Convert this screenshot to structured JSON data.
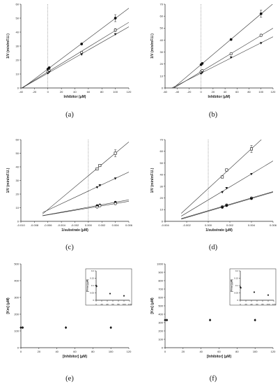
{
  "chart_data": [
    {
      "id": "a",
      "panel_label": "(a)",
      "type": "scatter",
      "xlabel": "Inhibitor (μM)",
      "ylabel": "1/V (min/mF.U.)",
      "xlim": [
        -40,
        120
      ],
      "ylim": [
        0,
        60
      ],
      "xticks": [
        -40,
        -20,
        0,
        20,
        40,
        60,
        80,
        100,
        120
      ],
      "yticks": [
        0,
        10,
        20,
        30,
        40,
        50,
        60
      ],
      "vline": 0,
      "fit_lines": true,
      "series": [
        {
          "marker": "filled-circle",
          "x": [
            0,
            2,
            50,
            100
          ],
          "y": [
            13.5,
            14.5,
            31.5,
            50
          ],
          "err": [
            0,
            0,
            0,
            2.5
          ],
          "line_from_x": -40,
          "line_to_x": 120
        },
        {
          "marker": "open-circle",
          "x": [
            0,
            2,
            50,
            100
          ],
          "y": [
            11.5,
            12.5,
            25.5,
            41.5
          ],
          "err": [
            0,
            0,
            0,
            1
          ],
          "line_from_x": -40,
          "line_to_x": 120
        },
        {
          "marker": "filled-triangle-down",
          "x": [
            0,
            2,
            50,
            100
          ],
          "y": [
            10.5,
            11.5,
            24,
            38.5
          ],
          "err": [
            0,
            0,
            0,
            0
          ],
          "line_from_x": -40,
          "line_to_x": 120
        }
      ]
    },
    {
      "id": "b",
      "panel_label": "(b)",
      "type": "scatter",
      "xlabel": "Inhibitor (μM)",
      "ylabel": "1/V (min/mF.U.)",
      "xlim": [
        -60,
        120
      ],
      "ylim": [
        0,
        70
      ],
      "xticks": [
        -60,
        -40,
        -20,
        0,
        20,
        40,
        60,
        80,
        100,
        120
      ],
      "yticks": [
        0,
        10,
        20,
        30,
        40,
        50,
        60,
        70
      ],
      "vline": 0,
      "fit_lines": true,
      "series": [
        {
          "marker": "filled-circle",
          "x": [
            0,
            2,
            50,
            100
          ],
          "y": [
            19.5,
            20.5,
            40.5,
            62
          ],
          "err": [
            0,
            0,
            0,
            3
          ],
          "line_from_x": -50,
          "line_to_x": 120
        },
        {
          "marker": "open-circle",
          "x": [
            0,
            2,
            50,
            100
          ],
          "y": [
            13.5,
            14.5,
            28.5,
            44
          ],
          "err": [
            0,
            0,
            0,
            1
          ],
          "line_from_x": -50,
          "line_to_x": 120
        },
        {
          "marker": "filled-triangle-down",
          "x": [
            0,
            2,
            50,
            100
          ],
          "y": [
            12,
            13,
            25.5,
            37.5
          ],
          "err": [
            0,
            0,
            0,
            0
          ],
          "line_from_x": -50,
          "line_to_x": 120
        }
      ]
    },
    {
      "id": "c",
      "panel_label": "(c)",
      "type": "scatter",
      "xlabel": "1/substrate (μM)",
      "ylabel": "1/V (min/mF.U.)",
      "xlim": [
        -0.01,
        0.006
      ],
      "ylim": [
        0,
        60
      ],
      "xticks": [
        -0.01,
        -0.008,
        -0.006,
        -0.004,
        -0.002,
        0.0,
        0.002,
        0.004,
        0.006
      ],
      "ytick_labels_x": [
        "-0.010",
        "-0.008",
        "-0.006",
        "-0.004",
        "-0.002",
        "0.000",
        "0.002",
        "0.004",
        "0.006"
      ],
      "yticks": [
        0,
        10,
        20,
        30,
        40,
        50,
        60
      ],
      "vline": 0,
      "fit_lines": true,
      "series": [
        {
          "marker": "open-square",
          "x": [
            0.0013,
            0.0017,
            0.004
          ],
          "y": [
            38.5,
            41,
            50
          ],
          "err": [
            0,
            0,
            2.5
          ],
          "line_from_x": -0.0068,
          "line_to_x": 0.006
        },
        {
          "marker": "filled-triangle-down",
          "x": [
            0.0013,
            0.0017,
            0.004
          ],
          "y": [
            25,
            26.5,
            31.5
          ],
          "err": [
            0,
            0,
            0
          ],
          "line_from_x": -0.0068,
          "line_to_x": 0.006
        },
        {
          "marker": "filled-circle",
          "x": [
            0.0013,
            0.0017,
            0.004
          ],
          "y": [
            11.5,
            12,
            14
          ],
          "err": [
            0,
            0,
            0
          ],
          "line_from_x": -0.0068,
          "line_to_x": 0.006
        },
        {
          "marker": "open-circle",
          "x": [
            0.0013,
            0.0017,
            0.004
          ],
          "y": [
            10.5,
            11.5,
            13
          ],
          "err": [
            0,
            0,
            0
          ],
          "line_from_x": -0.0068,
          "line_to_x": 0.006
        }
      ]
    },
    {
      "id": "d",
      "panel_label": "(d)",
      "type": "scatter",
      "xlabel": "1/substrate (μM)",
      "ylabel": "1/V (min/mF.U.)",
      "xlim": [
        -0.004,
        0.006
      ],
      "ylim": [
        0,
        70
      ],
      "xticks": [
        -0.004,
        -0.002,
        0.0,
        0.002,
        0.004,
        0.006
      ],
      "ytick_labels_x": [
        "-0.004",
        "-0.002",
        "0.000",
        "0.002",
        "0.004",
        "0.006"
      ],
      "yticks": [
        0,
        10,
        20,
        30,
        40,
        50,
        60,
        70
      ],
      "vline": 0,
      "fit_lines": true,
      "series": [
        {
          "marker": "open-square",
          "x": [
            0.0013,
            0.0017,
            0.004
          ],
          "y": [
            38,
            44,
            62
          ],
          "err": [
            0,
            0,
            3
          ],
          "line_from_x": -0.0025,
          "line_to_x": 0.006
        },
        {
          "marker": "filled-triangle-down",
          "x": [
            0.0013,
            0.0017,
            0.004
          ],
          "y": [
            25,
            28.5,
            40.5
          ],
          "err": [
            0,
            0,
            0
          ],
          "line_from_x": -0.0025,
          "line_to_x": 0.006
        },
        {
          "marker": "open-circle",
          "x": [
            0.0013,
            0.0017,
            0.004
          ],
          "y": [
            12.5,
            14,
            20
          ],
          "err": [
            0,
            0,
            0
          ],
          "line_from_x": -0.0025,
          "line_to_x": 0.006
        },
        {
          "marker": "filled-circle",
          "x": [
            0.0013,
            0.0017,
            0.004
          ],
          "y": [
            12,
            13.5,
            19.5
          ],
          "err": [
            0,
            0,
            0
          ],
          "line_from_x": -0.0025,
          "line_to_x": 0.006
        }
      ]
    },
    {
      "id": "e",
      "panel_label": "(e)",
      "type": "scatter",
      "xlabel": "[Inhibitor] (μM)",
      "ylabel": "[Km] (μM)",
      "xlim": [
        0,
        120
      ],
      "ylim": [
        0,
        500
      ],
      "xticks": [
        0,
        20,
        40,
        60,
        80,
        100,
        120
      ],
      "yticks": [
        0,
        100,
        200,
        300,
        400,
        500
      ],
      "fit_lines": false,
      "series": [
        {
          "marker": "filled-diamond",
          "x": [
            0,
            2,
            50,
            100
          ],
          "y": [
            120,
            120,
            120,
            120
          ],
          "err": [
            0,
            0,
            0,
            0
          ]
        }
      ],
      "inset": {
        "ylabel": "[Vmax] (μM)",
        "xlim": [
          0,
          120
        ],
        "ylim": [
          0,
          0.2
        ],
        "xticks": [
          0,
          20,
          40,
          60,
          80,
          100,
          120
        ],
        "yticks": [
          0,
          0.05,
          0.1,
          0.15,
          0.2
        ],
        "ytick_labels": [
          "0",
          "0.05",
          "0.1",
          "0.15",
          "0.2"
        ],
        "series": [
          {
            "marker": "filled-diamond",
            "x": [
              0,
              2,
              50,
              100
            ],
            "y": [
              0.1,
              0.095,
              0.045,
              0.03
            ]
          }
        ]
      }
    },
    {
      "id": "f",
      "panel_label": "(f)",
      "type": "scatter",
      "xlabel": "[Inhibitor] (μM)",
      "ylabel": "[Km] (μM)",
      "xlim": [
        0,
        120
      ],
      "ylim": [
        0,
        1000
      ],
      "xticks": [
        0,
        20,
        40,
        60,
        80,
        100,
        120
      ],
      "yticks": [
        0,
        100,
        200,
        300,
        400,
        500,
        600,
        700,
        800,
        900,
        1000
      ],
      "fit_lines": false,
      "series": [
        {
          "marker": "filled-diamond",
          "x": [
            0,
            2,
            50,
            100
          ],
          "y": [
            330,
            330,
            330,
            330
          ],
          "err": [
            0,
            0,
            0,
            0
          ]
        }
      ],
      "inset": {
        "ylabel": "[Vmax] (μM)",
        "xlim": [
          0,
          120
        ],
        "ylim": [
          0,
          0.2
        ],
        "xticks": [
          0,
          20,
          40,
          60,
          80,
          100,
          120
        ],
        "yticks": [
          0,
          0.05,
          0.1,
          0.15,
          0.2
        ],
        "ytick_labels": [
          "0",
          "0.05",
          "0.1",
          "0.15",
          "0.2"
        ],
        "series": [
          {
            "marker": "filled-diamond",
            "x": [
              0,
              2,
              50,
              100
            ],
            "y": [
              0.09,
              0.085,
              0.055,
              0.035
            ]
          }
        ]
      }
    }
  ]
}
